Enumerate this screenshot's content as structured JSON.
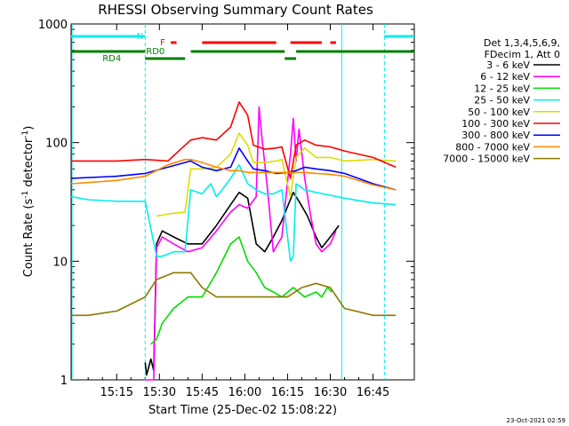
{
  "chart_data": {
    "type": "line",
    "title": "RHESSI Observing Summary Count Rates",
    "xlabel": "Start Time (25-Dec-02 15:08:22)",
    "ylabel_main": "Count Rate (s",
    "ylabel_sup1": "-1",
    "ylabel_mid": " detector",
    "ylabel_sup2": "-1",
    "ylabel_end": ")",
    "yscale": "log",
    "ylim": [
      1,
      1000
    ],
    "xlim_minutes": [
      -16.0,
      104.5
    ],
    "x_ticks": [
      {
        "label": "15:15",
        "t": 0
      },
      {
        "label": "15:30",
        "t": 15
      },
      {
        "label": "15:45",
        "t": 30
      },
      {
        "label": "16:00",
        "t": 45
      },
      {
        "label": "16:15",
        "t": 60
      },
      {
        "label": "16:30",
        "t": 75
      },
      {
        "label": "16:45",
        "t": 90
      }
    ],
    "y_ticks": [
      {
        "label": "1",
        "v": 1
      },
      {
        "label": "10",
        "v": 10
      },
      {
        "label": "100",
        "v": 100
      },
      {
        "label": "1000",
        "v": 1000
      }
    ],
    "legend_header": [
      "Det 1,3,4,5,6,9,",
      "FDecim 1, Att 0"
    ],
    "series": [
      {
        "name": "3 - 6 keV",
        "color": "#000000",
        "points": [
          [
            10,
            1.4
          ],
          [
            10.5,
            1.1
          ],
          [
            12,
            1.5
          ],
          [
            13,
            1.2
          ],
          [
            14,
            14
          ],
          [
            16,
            18
          ],
          [
            20,
            16
          ],
          [
            25,
            14
          ],
          [
            30,
            14
          ],
          [
            35,
            20
          ],
          [
            40,
            30
          ],
          [
            43,
            38
          ],
          [
            46,
            34
          ],
          [
            49,
            14
          ],
          [
            52,
            12
          ],
          [
            55,
            16
          ],
          [
            58,
            22
          ],
          [
            62,
            38
          ],
          [
            64,
            32
          ],
          [
            67,
            24
          ],
          [
            70,
            16
          ],
          [
            72,
            13
          ],
          [
            75,
            16
          ],
          [
            78,
            20
          ]
        ]
      },
      {
        "name": "6 - 12 keV",
        "color": "#ff00ff",
        "points": [
          [
            10,
            1
          ],
          [
            13,
            1
          ],
          [
            14,
            13
          ],
          [
            16,
            16
          ],
          [
            20,
            14
          ],
          [
            25,
            12
          ],
          [
            30,
            13
          ],
          [
            35,
            18
          ],
          [
            40,
            26
          ],
          [
            43,
            30
          ],
          [
            46,
            28
          ],
          [
            49,
            35
          ],
          [
            50,
            200
          ],
          [
            51,
            110
          ],
          [
            53,
            40
          ],
          [
            55,
            12
          ],
          [
            58,
            16
          ],
          [
            61,
            80
          ],
          [
            62,
            160
          ],
          [
            63,
            70
          ],
          [
            64,
            130
          ],
          [
            66,
            50
          ],
          [
            68,
            25
          ],
          [
            70,
            14
          ],
          [
            72,
            12
          ],
          [
            75,
            14
          ],
          [
            77,
            18
          ]
        ]
      },
      {
        "name": "12 - 25 keV",
        "color": "#00dd00",
        "points": [
          [
            12,
            2
          ],
          [
            14,
            2.2
          ],
          [
            16,
            3
          ],
          [
            20,
            4
          ],
          [
            25,
            5
          ],
          [
            30,
            5
          ],
          [
            35,
            8
          ],
          [
            40,
            14
          ],
          [
            43,
            16
          ],
          [
            46,
            10
          ],
          [
            49,
            8
          ],
          [
            52,
            6
          ],
          [
            55,
            5.5
          ],
          [
            58,
            5
          ],
          [
            62,
            6
          ],
          [
            66,
            5
          ],
          [
            70,
            5.5
          ],
          [
            72,
            5
          ],
          [
            74,
            6
          ],
          [
            75.5,
            5.5
          ]
        ]
      },
      {
        "name": "25 - 50 keV",
        "color": "#00eeee",
        "points": [
          [
            -16,
            35
          ],
          [
            -10,
            33
          ],
          [
            0,
            32
          ],
          [
            10,
            32
          ],
          [
            14,
            11
          ],
          [
            16,
            11
          ],
          [
            20,
            12
          ],
          [
            24,
            12
          ],
          [
            26,
            40
          ],
          [
            30,
            37
          ],
          [
            33,
            45
          ],
          [
            35,
            35
          ],
          [
            37,
            40
          ],
          [
            40,
            50
          ],
          [
            43,
            65
          ],
          [
            46,
            45
          ],
          [
            49,
            40
          ],
          [
            52,
            37
          ],
          [
            55,
            37
          ],
          [
            58,
            40
          ],
          [
            61,
            10
          ],
          [
            62,
            11
          ],
          [
            63,
            45
          ],
          [
            66,
            40
          ],
          [
            70,
            38
          ],
          [
            75,
            36
          ],
          [
            80,
            34
          ],
          [
            90,
            31
          ],
          [
            98,
            30
          ]
        ]
      },
      {
        "name": "50 - 100 keV",
        "color": "#dddd00",
        "points": [
          [
            14,
            24
          ],
          [
            18,
            25
          ],
          [
            24,
            26
          ],
          [
            26,
            60
          ],
          [
            30,
            60
          ],
          [
            35,
            62
          ],
          [
            40,
            80
          ],
          [
            43,
            120
          ],
          [
            46,
            95
          ],
          [
            48,
            68
          ],
          [
            52,
            68
          ],
          [
            56,
            70
          ],
          [
            58,
            72
          ],
          [
            61,
            35
          ],
          [
            63,
            75
          ],
          [
            66,
            90
          ],
          [
            70,
            75
          ],
          [
            75,
            75
          ],
          [
            80,
            70
          ],
          [
            90,
            72
          ],
          [
            98,
            70
          ]
        ]
      },
      {
        "name": "100 - 300 keV",
        "color": "#ff0000",
        "points": [
          [
            -16,
            70
          ],
          [
            0,
            70
          ],
          [
            10,
            72
          ],
          [
            18,
            70
          ],
          [
            26,
            105
          ],
          [
            30,
            110
          ],
          [
            35,
            105
          ],
          [
            40,
            135
          ],
          [
            43,
            220
          ],
          [
            46,
            170
          ],
          [
            48,
            95
          ],
          [
            52,
            88
          ],
          [
            56,
            90
          ],
          [
            58,
            92
          ],
          [
            61,
            50
          ],
          [
            63,
            95
          ],
          [
            66,
            105
          ],
          [
            70,
            95
          ],
          [
            75,
            92
          ],
          [
            80,
            85
          ],
          [
            90,
            75
          ],
          [
            98,
            62
          ]
        ]
      },
      {
        "name": "300 - 800 keV",
        "color": "#0000ff",
        "points": [
          [
            -16,
            50
          ],
          [
            0,
            52
          ],
          [
            10,
            55
          ],
          [
            18,
            62
          ],
          [
            26,
            70
          ],
          [
            30,
            62
          ],
          [
            35,
            58
          ],
          [
            40,
            62
          ],
          [
            43,
            90
          ],
          [
            46,
            70
          ],
          [
            48,
            60
          ],
          [
            52,
            58
          ],
          [
            56,
            55
          ],
          [
            60,
            56
          ],
          [
            63,
            58
          ],
          [
            66,
            62
          ],
          [
            70,
            60
          ],
          [
            75,
            58
          ],
          [
            80,
            55
          ],
          [
            90,
            45
          ],
          [
            98,
            40
          ]
        ]
      },
      {
        "name": "800 - 7000 keV",
        "color": "#ff8800",
        "points": [
          [
            -16,
            45
          ],
          [
            0,
            48
          ],
          [
            10,
            52
          ],
          [
            18,
            65
          ],
          [
            24,
            72
          ],
          [
            26,
            72
          ],
          [
            30,
            68
          ],
          [
            35,
            62
          ],
          [
            40,
            58
          ],
          [
            43,
            58
          ],
          [
            46,
            56
          ],
          [
            50,
            56
          ],
          [
            55,
            56
          ],
          [
            60,
            56
          ],
          [
            63,
            56
          ],
          [
            66,
            56
          ],
          [
            70,
            55
          ],
          [
            75,
            54
          ],
          [
            80,
            52
          ],
          [
            90,
            44
          ],
          [
            98,
            40
          ]
        ]
      },
      {
        "name": "7000 - 15000 keV",
        "color": "#8b7a00",
        "points": [
          [
            -16,
            3.5
          ],
          [
            -10,
            3.5
          ],
          [
            0,
            3.8
          ],
          [
            10,
            5
          ],
          [
            14,
            7
          ],
          [
            20,
            8
          ],
          [
            26,
            8
          ],
          [
            30,
            6
          ],
          [
            35,
            5
          ],
          [
            40,
            5
          ],
          [
            45,
            5
          ],
          [
            50,
            5
          ],
          [
            55,
            5
          ],
          [
            60,
            5
          ],
          [
            65,
            6
          ],
          [
            70,
            6.5
          ],
          [
            75,
            6
          ],
          [
            80,
            4
          ],
          [
            90,
            3.5
          ],
          [
            98,
            3.5
          ]
        ]
      }
    ],
    "flags": [
      {
        "label": "N",
        "color": "#00eeee",
        "segments": [
          [
            -16,
            10
          ],
          [
            94,
            104.5
          ]
        ]
      },
      {
        "label": "F",
        "color": "#ff0000",
        "segments": [
          [
            19,
            21
          ],
          [
            30,
            56
          ],
          [
            61,
            72
          ],
          [
            75,
            77
          ]
        ]
      },
      {
        "label": "RD0",
        "color": "#007f00",
        "segments": [
          [
            -16,
            10
          ],
          [
            26,
            59
          ],
          [
            63,
            104.5
          ]
        ]
      },
      {
        "label": "RD4",
        "color": "#007f00",
        "segments": [
          [
            10,
            24
          ],
          [
            59,
            63
          ]
        ]
      }
    ],
    "stamp": "23-Oct-2021 02:59"
  }
}
